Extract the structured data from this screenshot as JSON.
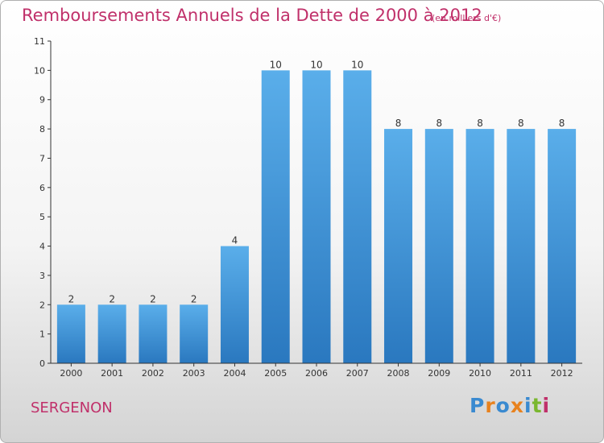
{
  "chart_data": {
    "type": "bar",
    "title": "Remboursements Annuels de la Dette de 2000 à 2012",
    "unit_note": "(en milliers d'€)",
    "categories": [
      "2000",
      "2001",
      "2002",
      "2003",
      "2004",
      "2005",
      "2006",
      "2007",
      "2008",
      "2009",
      "2010",
      "2011",
      "2012"
    ],
    "values": [
      2,
      2,
      2,
      2,
      4,
      10,
      10,
      10,
      8,
      8,
      8,
      8,
      8
    ],
    "data_labels": [
      "2",
      "2",
      "2",
      "2",
      "4",
      "10",
      "10",
      "10",
      "8",
      "8",
      "8",
      "8",
      "8"
    ],
    "y_ticks": [
      0,
      1,
      2,
      3,
      4,
      5,
      6,
      7,
      8,
      9,
      10,
      11
    ],
    "ylim": [
      0,
      11
    ],
    "grid": false,
    "legend": "none",
    "bar_color": "#3d8fd6"
  },
  "footer": {
    "town": "SERGENON",
    "brand": "Proxiti",
    "brand_colors": [
      "#3a8ad0",
      "#e8821e",
      "#3a8ad0",
      "#e8821e",
      "#3a8ad0",
      "#7ab72f",
      "#c0306a"
    ]
  }
}
